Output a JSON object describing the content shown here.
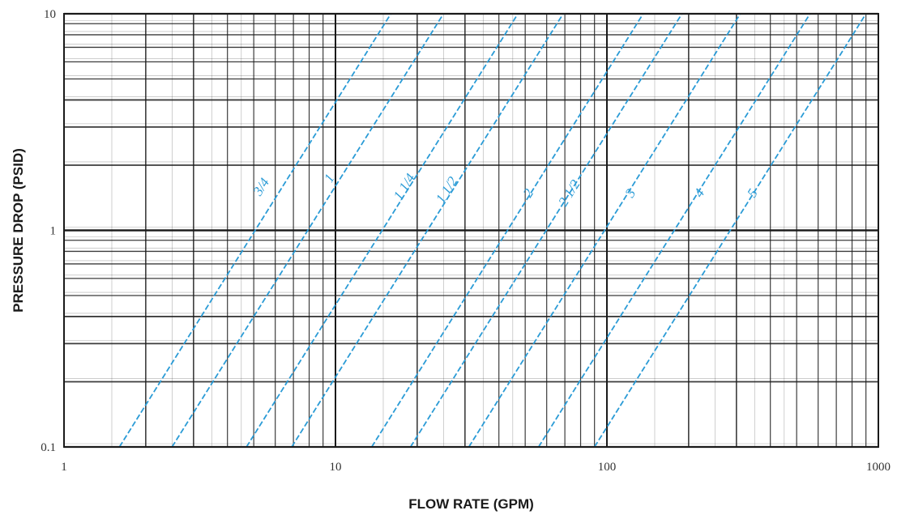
{
  "chart_data": {
    "type": "line",
    "xlabel": "FLOW RATE (GPM)",
    "ylabel": "PRESSURE DROP (PSID)",
    "xscale": "log",
    "yscale": "log",
    "xlim": [
      1,
      1000
    ],
    "ylim": [
      0.1,
      10
    ],
    "grid": true,
    "x_ticks": [
      {
        "value": 1,
        "label": "1"
      },
      {
        "value": 10,
        "label": "10"
      },
      {
        "value": 100,
        "label": "100"
      },
      {
        "value": 1000,
        "label": "1000"
      }
    ],
    "y_ticks": [
      {
        "value": 0.1,
        "label": "0.1"
      },
      {
        "value": 1,
        "label": "1"
      },
      {
        "value": 10,
        "label": "10"
      }
    ],
    "colors": {
      "series": "#2a9bd6",
      "grid": "#1a1a1a"
    },
    "series": [
      {
        "name": "3/4",
        "points": [
          [
            1.6,
            0.1
          ],
          [
            16.0,
            10
          ]
        ]
      },
      {
        "name": "1",
        "points": [
          [
            2.5,
            0.1
          ],
          [
            25.0,
            10
          ]
        ]
      },
      {
        "name": "1 1/4",
        "points": [
          [
            4.7,
            0.1
          ],
          [
            47.0,
            10
          ]
        ]
      },
      {
        "name": "1 1/2",
        "points": [
          [
            6.9,
            0.1
          ],
          [
            69.0,
            10
          ]
        ]
      },
      {
        "name": "2",
        "points": [
          [
            13.6,
            0.1
          ],
          [
            136.0,
            10
          ]
        ]
      },
      {
        "name": "2 1/2",
        "points": [
          [
            18.9,
            0.1
          ],
          [
            189.0,
            10
          ]
        ]
      },
      {
        "name": "3",
        "points": [
          [
            31.0,
            0.1
          ],
          [
            310.0,
            10
          ]
        ]
      },
      {
        "name": "4",
        "points": [
          [
            56.0,
            0.1
          ],
          [
            560.0,
            10
          ]
        ]
      },
      {
        "name": "5",
        "points": [
          [
            90.0,
            0.1
          ],
          [
            900.0,
            10
          ]
        ]
      }
    ],
    "series_labels": [
      {
        "text": "3/4",
        "x": 5.5,
        "y": 1.55
      },
      {
        "text": "1",
        "x": 9.8,
        "y": 1.7
      },
      {
        "text": "1 1/4",
        "x": 18.5,
        "y": 1.55
      },
      {
        "text": "1 1/2",
        "x": 26.5,
        "y": 1.5
      },
      {
        "text": "2",
        "x": 53.0,
        "y": 1.45
      },
      {
        "text": "2 1/2",
        "x": 75.0,
        "y": 1.45
      },
      {
        "text": "3",
        "x": 126.0,
        "y": 1.45
      },
      {
        "text": "4",
        "x": 226.0,
        "y": 1.45
      },
      {
        "text": "5",
        "x": 355.0,
        "y": 1.45
      }
    ]
  }
}
